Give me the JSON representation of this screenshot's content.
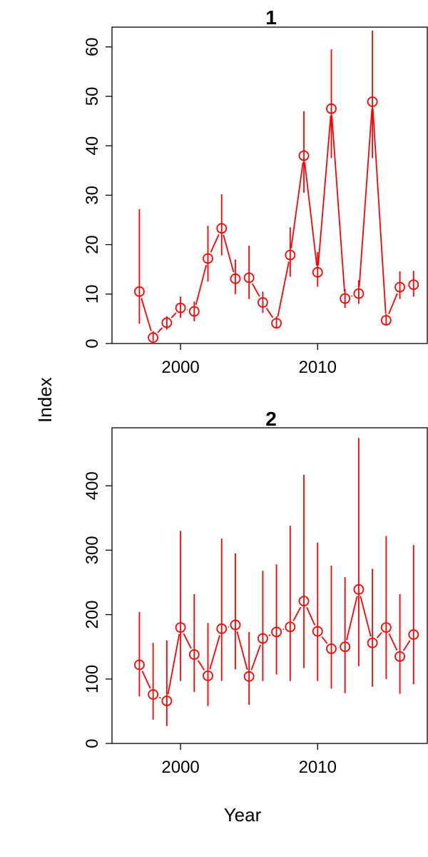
{
  "xlabel": "Year",
  "ylabel": "Index",
  "chart_data": [
    {
      "type": "scatter",
      "title": "1",
      "xlim": [
        1995,
        2018
      ],
      "ylim": [
        0,
        64
      ],
      "x_ticks": [
        2000,
        2010
      ],
      "y_ticks": [
        0,
        10,
        20,
        30,
        40,
        50,
        60
      ],
      "color": "#ff0000",
      "series": [
        {
          "x": [
            1997,
            1998,
            1999,
            2000,
            2001,
            2002,
            2003,
            2004,
            2005,
            2006,
            2007,
            2008,
            2009,
            2010,
            2011,
            2012,
            2013,
            2014,
            2015,
            2016,
            2017
          ],
          "y": [
            10.5,
            1.2,
            4.2,
            7.2,
            6.5,
            17.2,
            23.3,
            13.1,
            13.3,
            8.3,
            4.1,
            17.9,
            38.0,
            14.4,
            47.5,
            9.1,
            10.1,
            48.9,
            4.7,
            11.4,
            11.9
          ],
          "lower": [
            4.0,
            0.5,
            2.8,
            5.2,
            4.5,
            12.5,
            17.8,
            10.0,
            9.0,
            6.2,
            3.0,
            13.5,
            30.5,
            11.5,
            37.5,
            7.2,
            8.0,
            37.5,
            3.8,
            9.0,
            9.5
          ],
          "upper": [
            27.2,
            2.5,
            5.5,
            9.5,
            8.5,
            23.8,
            30.2,
            17.0,
            19.8,
            10.5,
            5.5,
            23.5,
            47.0,
            18.5,
            59.5,
            11.0,
            12.8,
            63.3,
            6.0,
            14.6,
            14.7
          ]
        }
      ]
    },
    {
      "type": "scatter",
      "title": "2",
      "xlim": [
        1995,
        2018
      ],
      "ylim": [
        0,
        490
      ],
      "x_ticks": [
        2000,
        2010
      ],
      "y_ticks": [
        0,
        100,
        200,
        300,
        400
      ],
      "color": "#ff0000",
      "series": [
        {
          "x": [
            1997,
            1998,
            1999,
            2000,
            2001,
            2002,
            2003,
            2004,
            2005,
            2006,
            2007,
            2008,
            2009,
            2010,
            2011,
            2012,
            2013,
            2014,
            2015,
            2016,
            2017
          ],
          "y": [
            122,
            76,
            66,
            180,
            138,
            105,
            178,
            184,
            104,
            163,
            173,
            181,
            221,
            174,
            147,
            150,
            239,
            156,
            180,
            135,
            169
          ],
          "lower": [
            73,
            37,
            27,
            97,
            80,
            58,
            97,
            115,
            60,
            97,
            107,
            97,
            117,
            97,
            85,
            78,
            120,
            88,
            100,
            77,
            92
          ],
          "upper": [
            204,
            156,
            160,
            330,
            232,
            187,
            318,
            295,
            173,
            268,
            278,
            338,
            417,
            312,
            276,
            258,
            474,
            271,
            322,
            232,
            308
          ]
        }
      ]
    }
  ]
}
